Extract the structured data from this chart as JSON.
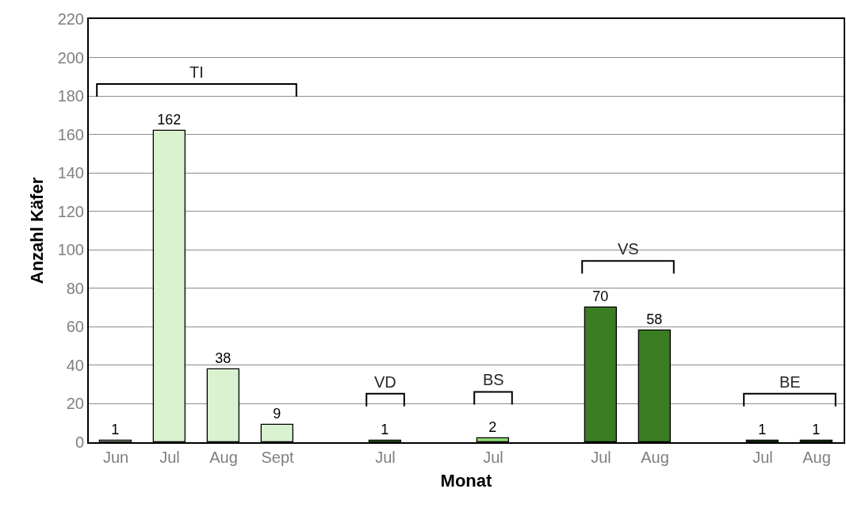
{
  "chart_data": {
    "type": "bar",
    "xlabel": "Monat",
    "ylabel": "Anzahl Käfer",
    "categories": [
      "Jun",
      "Jul",
      "Aug",
      "Sept",
      null,
      "Jul",
      null,
      "Jul",
      null,
      "Jul",
      "Aug",
      null,
      "Jul",
      "Aug"
    ],
    "values": [
      1,
      162,
      38,
      9,
      null,
      1,
      null,
      2,
      null,
      70,
      58,
      null,
      1,
      1
    ],
    "colors": [
      "#d9f2d0",
      "#d9f2d0",
      "#d9f2d0",
      "#d9f2d0",
      "#ffffff",
      "#4ea72e",
      "#ffffff",
      "#8ed973",
      "#ffffff",
      "#3a7d22",
      "#3a7d22",
      "#ffffff",
      "#2a5a18",
      "#2a5a18"
    ],
    "data_labels": true,
    "ylim": [
      0,
      220
    ],
    "yticks": [
      0,
      20,
      40,
      60,
      80,
      100,
      120,
      140,
      160,
      180,
      200,
      220
    ],
    "grid": "y",
    "annotations": [
      "TI",
      "VD",
      "BS",
      "VS",
      "BE"
    ]
  }
}
